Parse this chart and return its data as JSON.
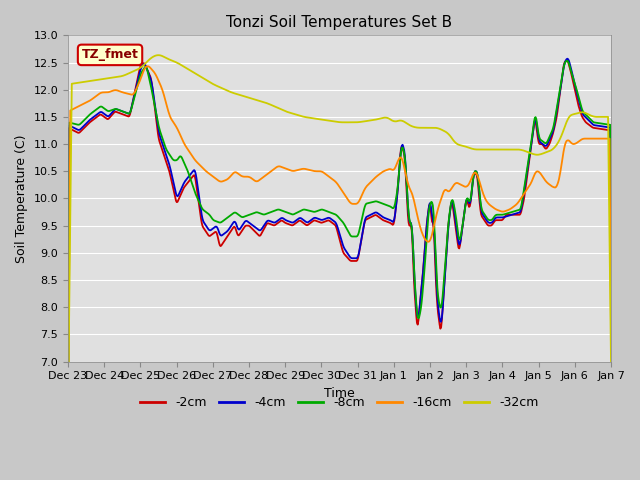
{
  "title": "Tonzi Soil Temperatures Set B",
  "xlabel": "Time",
  "ylabel": "Soil Temperature (C)",
  "ylim": [
    7.0,
    13.0
  ],
  "yticks": [
    7.0,
    7.5,
    8.0,
    8.5,
    9.0,
    9.5,
    10.0,
    10.5,
    11.0,
    11.5,
    12.0,
    12.5,
    13.0
  ],
  "x_labels": [
    "Dec 23",
    "Dec 24",
    "Dec 25",
    "Dec 26",
    "Dec 27",
    "Dec 28",
    "Dec 29",
    "Dec 30",
    "Dec 31",
    "Jan 1",
    "Jan 2",
    "Jan 3",
    "Jan 4",
    "Jan 5",
    "Jan 6",
    "Jan 7"
  ],
  "legend_label": "TZ_fmet",
  "series_labels": [
    "-2cm",
    "-4cm",
    "-8cm",
    "-16cm",
    "-32cm"
  ],
  "series_colors": [
    "#cc0000",
    "#0000cc",
    "#00aa00",
    "#ff8800",
    "#cccc00"
  ],
  "background_color": "#c8c8c8",
  "plot_bg_color": "#e0e0e0",
  "grid_color": "#ffffff",
  "title_fontsize": 11,
  "axis_fontsize": 9,
  "tick_fontsize": 8,
  "legend_box_facecolor": "#ffffcc",
  "legend_box_edgecolor": "#cc0000",
  "legend_text_color": "#880000"
}
